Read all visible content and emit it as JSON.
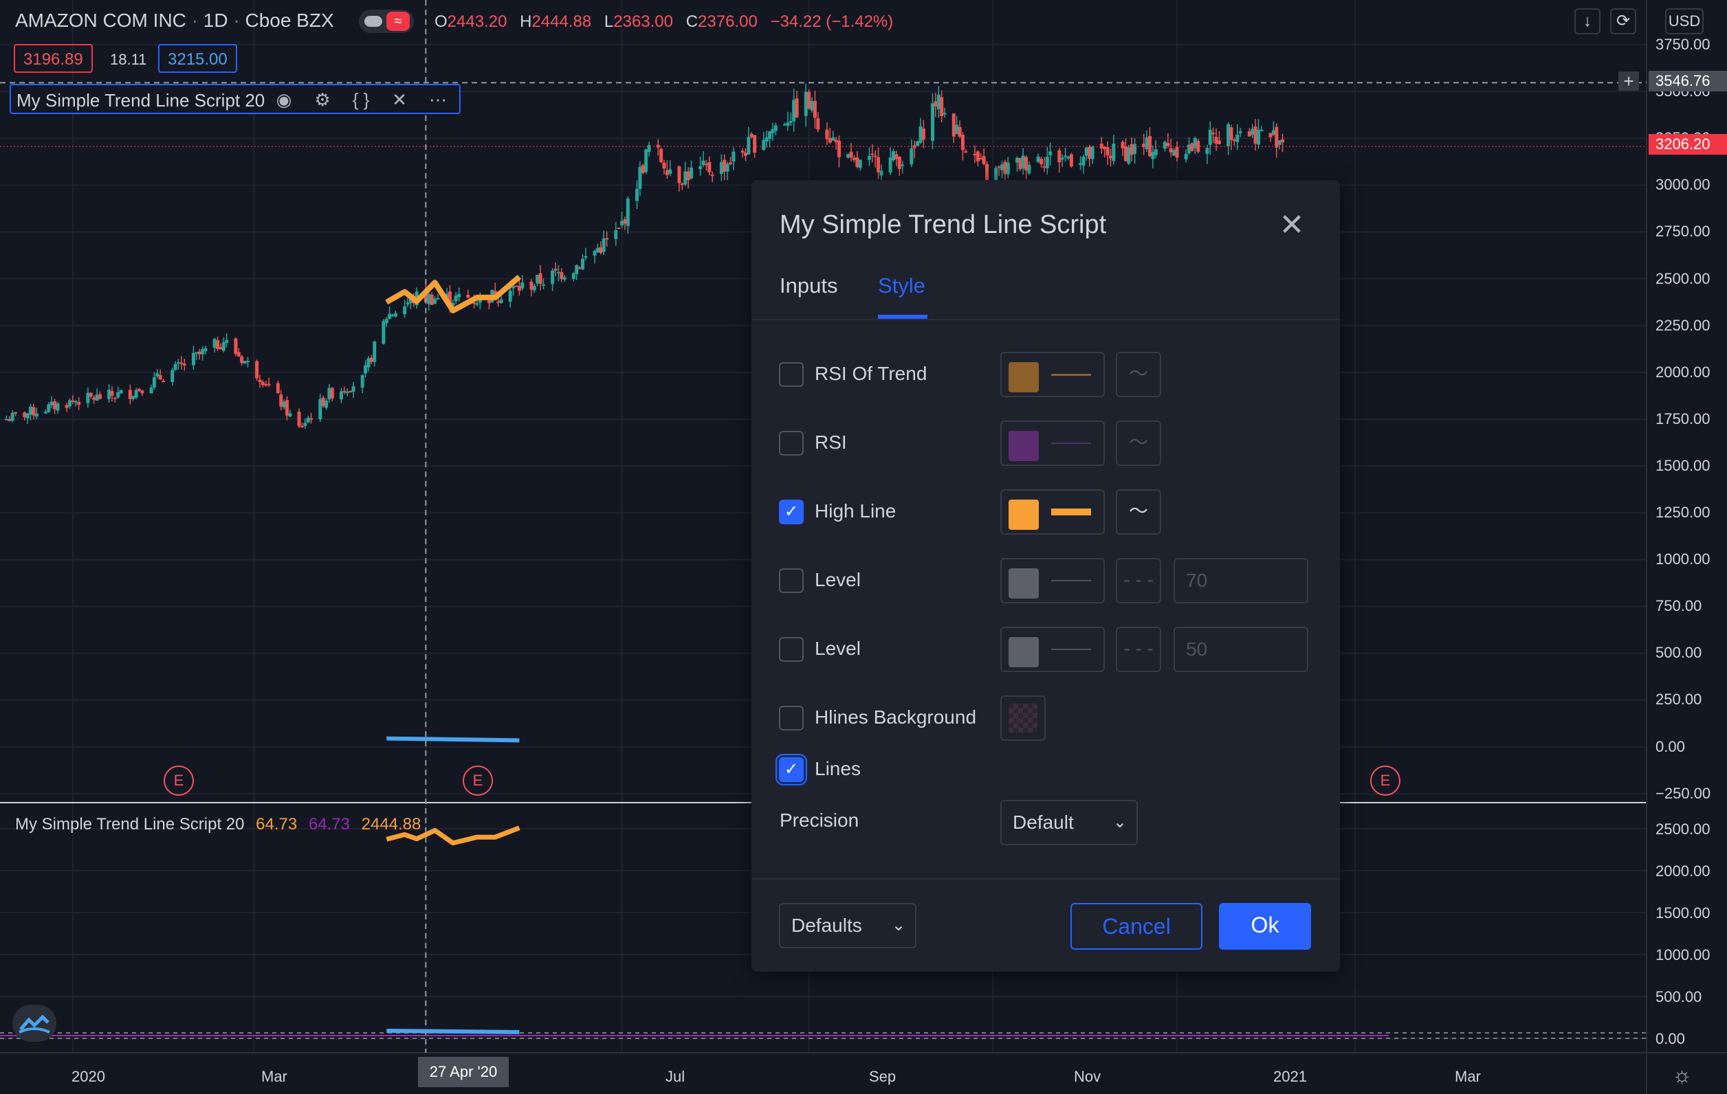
{
  "header": {
    "symbol": "AMAZON COM INC",
    "interval": "1D",
    "exchange": "Cboe BZX",
    "sep": "·",
    "ohlc": [
      {
        "k": "O",
        "v": "2443.20"
      },
      {
        "k": "H",
        "v": "2444.88"
      },
      {
        "k": "L",
        "v": "2363.00"
      },
      {
        "k": "C",
        "v": "2376.00"
      },
      {
        "k": "",
        "v": "−34.22 (−1.42%)"
      }
    ],
    "bid": "3196.89",
    "spread": "18.11",
    "ask": "3215.00",
    "currency": "USD"
  },
  "indicator_legend": {
    "name": "My Simple Trend Line Script 20"
  },
  "lower_pane": {
    "name": "My Simple Trend Line Script 20",
    "v1": "64.73",
    "v2": "64.73",
    "v3": "2444.88"
  },
  "price_axis": {
    "labels": [
      "3750.00",
      "3500.00",
      "3250.00",
      "3000.00",
      "2750.00",
      "2500.00",
      "2250.00",
      "2000.00",
      "1750.00",
      "1500.00",
      "1250.00",
      "1000.00",
      "750.00",
      "500.00",
      "250.00",
      "0.00",
      "−250.00"
    ],
    "crosshair_price": "3546.76",
    "last_price": "3206.20"
  },
  "lower_axis": {
    "labels": [
      "2500.00",
      "2000.00",
      "1500.00",
      "1000.00",
      "500.00",
      "0.00"
    ]
  },
  "time_axis": {
    "labels": [
      "2020",
      "Mar",
      "27 Apr '20",
      "Jul",
      "Sep",
      "Nov",
      "2021",
      "Mar"
    ],
    "crosshair_date": "27 Apr '20"
  },
  "earnings_marker": "E",
  "dialog": {
    "title": "My Simple Trend Line Script",
    "tabs": [
      "Inputs",
      "Style"
    ],
    "active_tab": "Style",
    "rows": [
      {
        "label": "RSI Of Trend",
        "checked": false,
        "color": "#8d5f2b"
      },
      {
        "label": "RSI",
        "checked": false,
        "color": "#5b2c6f"
      },
      {
        "label": "High Line",
        "checked": true,
        "color": "#f7a035"
      },
      {
        "label": "Level",
        "checked": false,
        "color": "#5d606b",
        "value": "70"
      },
      {
        "label": "Level",
        "checked": false,
        "color": "#5d606b",
        "value": "50"
      },
      {
        "label": "Hlines Background",
        "checked": false
      },
      {
        "label": "Lines",
        "checked": true
      }
    ],
    "precision_label": "Precision",
    "precision_value": "Default",
    "defaults_label": "Defaults",
    "cancel_label": "Cancel",
    "ok_label": "Ok"
  },
  "colors": {
    "background": "#131722",
    "up": "#26a69a",
    "down": "#ef5350",
    "accent": "#2962ff",
    "high_line": "#f7a035",
    "rsi": "#9c27b0",
    "lines": "#4aa3f0"
  },
  "chart_data": {
    "type": "candlestick",
    "ylim": [
      -250,
      3750
    ],
    "x_range": [
      "2019-12-09",
      "2021-05-15"
    ],
    "close_path": [
      [
        "2019-12-10",
        1752
      ],
      [
        "2020-01-02",
        1850
      ],
      [
        "2020-01-20",
        1890
      ],
      [
        "2020-02-03",
        2005
      ],
      [
        "2020-02-20",
        2170
      ],
      [
        "2020-03-05",
        1950
      ],
      [
        "2020-03-16",
        1700
      ],
      [
        "2020-03-26",
        1885
      ],
      [
        "2020-04-06",
        1960
      ],
      [
        "2020-04-14",
        2300
      ],
      [
        "2020-04-24",
        2400
      ],
      [
        "2020-05-15",
        2390
      ],
      [
        "2020-06-01",
        2470
      ],
      [
        "2020-06-15",
        2560
      ],
      [
        "2020-06-30",
        2750
      ],
      [
        "2020-07-10",
        3200
      ],
      [
        "2020-07-20",
        3050
      ],
      [
        "2020-08-03",
        3100
      ],
      [
        "2020-08-20",
        3300
      ],
      [
        "2020-08-31",
        3450
      ],
      [
        "2020-09-15",
        3100
      ],
      [
        "2020-10-05",
        3150
      ],
      [
        "2020-10-13",
        3450
      ],
      [
        "2020-10-30",
        3050
      ],
      [
        "2020-11-16",
        3150
      ],
      [
        "2020-12-01",
        3150
      ],
      [
        "2020-12-22",
        3200
      ],
      [
        "2021-01-06",
        3200
      ],
      [
        "2021-01-20",
        3300
      ],
      [
        "2021-02-05",
        3250
      ]
    ],
    "high_line": [
      [
        "2020-04-14",
        2375
      ],
      [
        "2020-04-20",
        2430
      ],
      [
        "2020-04-24",
        2380
      ],
      [
        "2020-04-30",
        2480
      ],
      [
        "2020-05-06",
        2330
      ],
      [
        "2020-05-14",
        2400
      ],
      [
        "2020-05-20",
        2400
      ],
      [
        "2020-05-28",
        2510
      ]
    ],
    "rsi_lower": [
      [
        "2020-04-14",
        64.73
      ],
      [
        "2020-05-28",
        64.73
      ]
    ]
  }
}
